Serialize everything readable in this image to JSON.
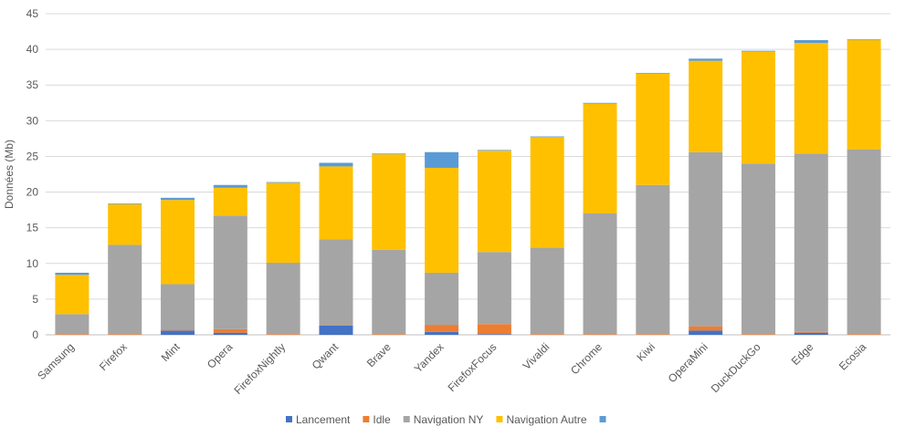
{
  "chart_data": {
    "type": "bar",
    "stacked": true,
    "title": "",
    "xlabel": "",
    "ylabel": "Données (Mb)",
    "ylim": [
      0,
      45
    ],
    "yticks": [
      0,
      5,
      10,
      15,
      20,
      25,
      30,
      35,
      40,
      45
    ],
    "grid": true,
    "legend_position": "bottom",
    "categories": [
      "Samsung",
      "Firefox",
      "Mint",
      "Opera",
      "FirefoxNightly",
      "Qwant",
      "Brave",
      "Yandex",
      "FirefoxFocus",
      "Vivaldi",
      "Chrome",
      "Kiwi",
      "OperaMini",
      "DuckDuckGo",
      "Edge",
      "Ecosia"
    ],
    "series": [
      {
        "name": "Lancement",
        "color": "#4472C4",
        "values": [
          0,
          0,
          0.6,
          0.3,
          0,
          1.3,
          0,
          0.4,
          0.1,
          0,
          0,
          0,
          0.6,
          0,
          0.3,
          0
        ]
      },
      {
        "name": "Idle",
        "color": "#ED7D31",
        "values": [
          0.1,
          0.1,
          0.1,
          0.5,
          0.1,
          0.1,
          0.1,
          1.0,
          1.4,
          0.1,
          0.1,
          0.1,
          0.6,
          0.1,
          0.1,
          0.1
        ]
      },
      {
        "name": "Navigation NY",
        "color": "#A5A5A5",
        "values": [
          2.8,
          12.5,
          6.4,
          15.9,
          10.0,
          12.0,
          11.8,
          7.3,
          10.1,
          12.1,
          16.9,
          20.9,
          24.4,
          23.9,
          25.0,
          25.9
        ]
      },
      {
        "name": "Navigation Autre",
        "color": "#FFC000",
        "values": [
          5.5,
          5.7,
          11.8,
          3.9,
          11.2,
          10.2,
          13.4,
          14.7,
          14.2,
          15.5,
          15.4,
          15.6,
          12.8,
          15.7,
          15.5,
          15.3
        ]
      },
      {
        "name": "",
        "color": "#5B9BD5",
        "values": [
          0.3,
          0.1,
          0.3,
          0.4,
          0.1,
          0.5,
          0.1,
          2.2,
          0.1,
          0.1,
          0.1,
          0.1,
          0.3,
          0.1,
          0.4,
          0.1
        ]
      }
    ]
  }
}
